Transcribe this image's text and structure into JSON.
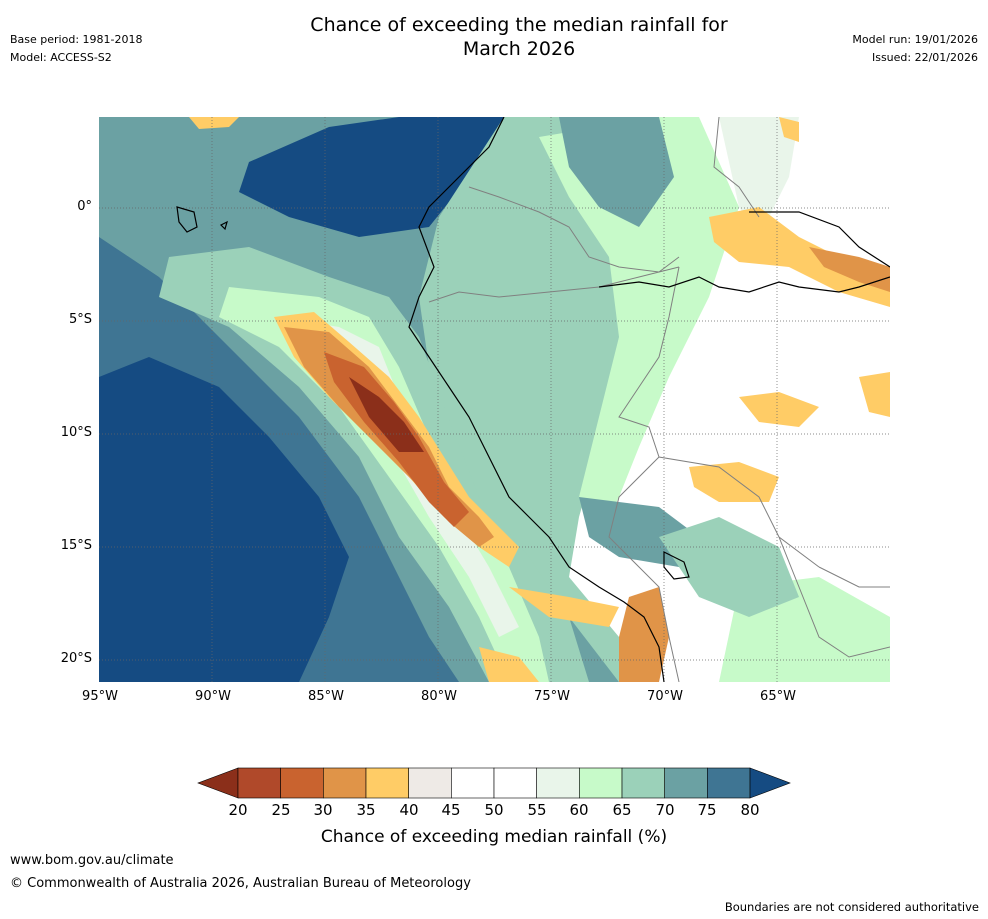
{
  "header": {
    "title_line1": "Chance of exceeding the median rainfall for",
    "title_line2": "March 2026",
    "base_period": "Base period: 1981-2018",
    "model": "Model: ACCESS-S2",
    "model_run": "Model run: 19/01/2026",
    "issued": "Issued: 22/01/2026"
  },
  "map": {
    "lat_labels": [
      "0°",
      "5°S",
      "10°S",
      "15°S",
      "20°S"
    ],
    "lon_labels": [
      "95°W",
      "90°W",
      "85°W",
      "80°W",
      "75°W",
      "70°W",
      "65°W"
    ],
    "colors": {
      "ocean_wet": "#154b82",
      "coast": "#000000",
      "border": "#808080"
    }
  },
  "colorbar": {
    "ticks": [
      "20",
      "25",
      "30",
      "35",
      "40",
      "45",
      "50",
      "55",
      "60",
      "65",
      "70",
      "75",
      "80"
    ],
    "colors": [
      "#8b2f1a",
      "#b0492a",
      "#c9632f",
      "#e09448",
      "#ffcc66",
      "#eeeae6",
      "#ffffff",
      "#ffffff",
      "#e9f5ea",
      "#c7fac9",
      "#9bd1b9",
      "#6ba1a3",
      "#3f7593",
      "#154b82"
    ],
    "label": "Chance of exceeding median rainfall (%)"
  },
  "footer": {
    "site": "www.bom.gov.au/climate",
    "copyright": "© Commonwealth of Australia 2026, Australian Bureau of Meteorology",
    "disclaimer": "Boundaries are not considered authoritative"
  }
}
